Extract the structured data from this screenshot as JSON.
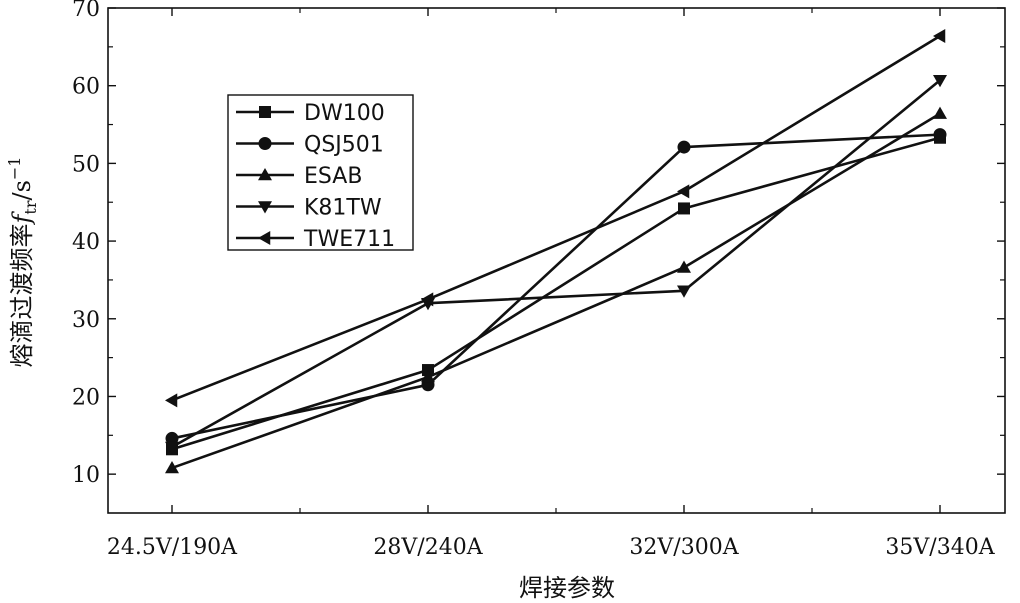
{
  "chart_data": {
    "type": "line",
    "categories": [
      "24.5V/190A",
      "28V/240A",
      "32V/300A",
      "35V/340A"
    ],
    "xlabel": "焊接参数",
    "ylabel": {
      "main": "熔滴过渡频率",
      "var": "f",
      "sub": "tr",
      "unit": "/s",
      "sup": "−1"
    },
    "yticks": [
      10,
      20,
      30,
      40,
      50,
      60,
      70
    ],
    "ylim": [
      5,
      70
    ],
    "series": [
      {
        "name": "DW100",
        "marker": "square",
        "values": [
          13.2,
          23.4,
          44.2,
          53.3
        ]
      },
      {
        "name": "QSJ501",
        "marker": "circle",
        "values": [
          14.6,
          21.5,
          52.1,
          53.7
        ]
      },
      {
        "name": "ESAB",
        "marker": "triangle-up",
        "values": [
          10.8,
          22.5,
          36.6,
          56.4
        ]
      },
      {
        "name": "K81TW",
        "marker": "triangle-down",
        "values": [
          13.5,
          32.0,
          33.6,
          60.7
        ]
      },
      {
        "name": "TWE711",
        "marker": "triangle-left",
        "values": [
          19.5,
          32.5,
          46.4,
          66.4
        ]
      }
    ],
    "legend": "upper-left"
  }
}
